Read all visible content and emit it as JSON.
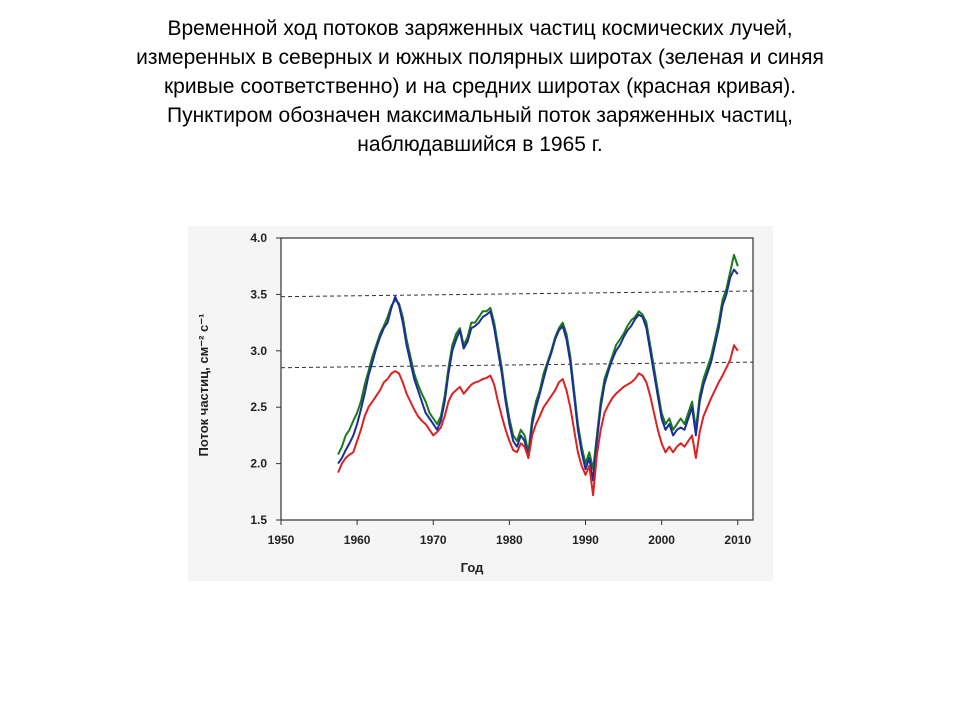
{
  "caption": {
    "lines": [
      "Временной ход потоков заряженных частиц космических лучей,",
      "измеренных в северных и южных полярных широтах (зеленая и синяя",
      "кривые соответственно) и на средних широтах (красная кривая).",
      "Пунктиром обозначен максимальный поток заряженных частиц,",
      "наблюдавшийся в 1965 г."
    ]
  },
  "chart_data": {
    "type": "line",
    "xlabel": "Год",
    "ylabel": "Поток частиц, см⁻² с⁻¹",
    "xlim": [
      1950,
      2012
    ],
    "ylim": [
      1.5,
      4.0
    ],
    "xticks": [
      "1950",
      "1960",
      "1970",
      "1980",
      "1990",
      "2000",
      "2010"
    ],
    "yticks": [
      "1.5",
      "2.0",
      "2.5",
      "3.0",
      "3.5",
      "4.0"
    ],
    "grid": false,
    "reference_lines": [
      {
        "style": "dashed",
        "color": "#333333",
        "points": [
          [
            1950,
            3.48
          ],
          [
            2012,
            3.53
          ]
        ]
      },
      {
        "style": "dashed",
        "color": "#333333",
        "points": [
          [
            1950,
            2.85
          ],
          [
            2012,
            2.9
          ]
        ]
      }
    ],
    "series": [
      {
        "color": "#1a7a1a",
        "x": [
          1957.5,
          1958.0,
          1958.5,
          1959.0,
          1959.5,
          1960.0,
          1960.5,
          1961.0,
          1961.5,
          1962.0,
          1962.5,
          1963.0,
          1963.5,
          1964.0,
          1964.5,
          1965.0,
          1965.5,
          1966.0,
          1966.5,
          1967.0,
          1967.5,
          1968.0,
          1968.5,
          1969.0,
          1969.5,
          1970.0,
          1970.5,
          1971.0,
          1971.5,
          1972.0,
          1972.5,
          1973.0,
          1973.5,
          1974.0,
          1974.5,
          1975.0,
          1975.5,
          1976.0,
          1976.5,
          1977.0,
          1977.5,
          1978.0,
          1978.5,
          1979.0,
          1979.5,
          1980.0,
          1980.5,
          1981.0,
          1981.5,
          1982.0,
          1982.5,
          1983.0,
          1983.5,
          1984.0,
          1984.5,
          1985.0,
          1985.5,
          1986.0,
          1986.5,
          1987.0,
          1987.5,
          1988.0,
          1988.5,
          1989.0,
          1989.5,
          1990.0,
          1990.5,
          1991.0,
          1991.5,
          1992.0,
          1992.5,
          1993.0,
          1993.5,
          1994.0,
          1994.5,
          1995.0,
          1995.5,
          1996.0,
          1996.5,
          1997.0,
          1997.5,
          1998.0,
          1998.5,
          1999.0,
          1999.5,
          2000.0,
          2000.5,
          2001.0,
          2001.5,
          2002.0,
          2002.5,
          2003.0,
          2003.5,
          2004.0,
          2004.5,
          2005.0,
          2005.5,
          2006.0,
          2006.5,
          2007.0,
          2007.5,
          2008.0,
          2008.5,
          2009.0,
          2009.5,
          2010.0
        ],
        "y": [
          2.08,
          2.15,
          2.25,
          2.3,
          2.38,
          2.45,
          2.55,
          2.7,
          2.82,
          2.95,
          3.05,
          3.15,
          3.22,
          3.3,
          3.4,
          3.45,
          3.42,
          3.3,
          3.1,
          2.95,
          2.8,
          2.7,
          2.62,
          2.55,
          2.45,
          2.4,
          2.35,
          2.42,
          2.6,
          2.85,
          3.05,
          3.15,
          3.2,
          3.05,
          3.12,
          3.25,
          3.25,
          3.3,
          3.35,
          3.35,
          3.38,
          3.25,
          3.05,
          2.85,
          2.6,
          2.4,
          2.25,
          2.2,
          2.3,
          2.25,
          2.1,
          2.4,
          2.55,
          2.65,
          2.8,
          2.9,
          3.0,
          3.12,
          3.2,
          3.25,
          3.15,
          2.95,
          2.65,
          2.35,
          2.15,
          2.0,
          2.1,
          1.95,
          2.25,
          2.55,
          2.75,
          2.85,
          2.95,
          3.05,
          3.1,
          3.15,
          3.22,
          3.27,
          3.3,
          3.35,
          3.32,
          3.25,
          3.05,
          2.85,
          2.65,
          2.45,
          2.35,
          2.4,
          2.3,
          2.35,
          2.4,
          2.35,
          2.45,
          2.55,
          2.3,
          2.6,
          2.75,
          2.85,
          2.95,
          3.1,
          3.25,
          3.45,
          3.55,
          3.7,
          3.85,
          3.75
        ]
      },
      {
        "color": "#1a2e99",
        "x": [
          1957.5,
          1958.0,
          1958.5,
          1959.0,
          1959.5,
          1960.0,
          1960.5,
          1961.0,
          1961.5,
          1962.0,
          1962.5,
          1963.0,
          1963.5,
          1964.0,
          1964.5,
          1965.0,
          1965.5,
          1966.0,
          1966.5,
          1967.0,
          1967.5,
          1968.0,
          1968.5,
          1969.0,
          1969.5,
          1970.0,
          1970.5,
          1971.0,
          1971.5,
          1972.0,
          1972.5,
          1973.0,
          1973.5,
          1974.0,
          1974.5,
          1975.0,
          1975.5,
          1976.0,
          1976.5,
          1977.0,
          1977.5,
          1978.0,
          1978.5,
          1979.0,
          1979.5,
          1980.0,
          1980.5,
          1981.0,
          1981.5,
          1982.0,
          1982.5,
          1983.0,
          1983.5,
          1984.0,
          1984.5,
          1985.0,
          1985.5,
          1986.0,
          1986.5,
          1987.0,
          1987.5,
          1988.0,
          1988.5,
          1989.0,
          1989.5,
          1990.0,
          1990.5,
          1991.0,
          1991.5,
          1992.0,
          1992.5,
          1993.0,
          1993.5,
          1994.0,
          1994.5,
          1995.0,
          1995.5,
          1996.0,
          1996.5,
          1997.0,
          1997.5,
          1998.0,
          1998.5,
          1999.0,
          1999.5,
          2000.0,
          2000.5,
          2001.0,
          2001.5,
          2002.0,
          2002.5,
          2003.0,
          2003.5,
          2004.0,
          2004.5,
          2005.0,
          2005.5,
          2006.0,
          2006.5,
          2007.0,
          2007.5,
          2008.0,
          2008.5,
          2009.0,
          2009.5,
          2010.0
        ],
        "y": [
          2.0,
          2.05,
          2.12,
          2.18,
          2.25,
          2.35,
          2.48,
          2.62,
          2.78,
          2.9,
          3.02,
          3.12,
          3.2,
          3.25,
          3.38,
          3.48,
          3.4,
          3.25,
          3.05,
          2.9,
          2.75,
          2.65,
          2.55,
          2.45,
          2.4,
          2.35,
          2.3,
          2.38,
          2.55,
          2.8,
          3.0,
          3.1,
          3.18,
          3.02,
          3.08,
          3.2,
          3.22,
          3.25,
          3.3,
          3.32,
          3.35,
          3.2,
          3.0,
          2.8,
          2.55,
          2.35,
          2.2,
          2.15,
          2.25,
          2.2,
          2.05,
          2.35,
          2.5,
          2.62,
          2.75,
          2.88,
          2.98,
          3.1,
          3.18,
          3.22,
          3.1,
          2.9,
          2.6,
          2.3,
          2.1,
          1.95,
          2.05,
          1.85,
          2.2,
          2.5,
          2.7,
          2.82,
          2.92,
          3.0,
          3.05,
          3.12,
          3.18,
          3.22,
          3.28,
          3.32,
          3.3,
          3.2,
          3.0,
          2.8,
          2.6,
          2.4,
          2.3,
          2.35,
          2.25,
          2.3,
          2.32,
          2.3,
          2.4,
          2.5,
          2.25,
          2.55,
          2.7,
          2.8,
          2.9,
          3.05,
          3.2,
          3.4,
          3.5,
          3.65,
          3.72,
          3.68
        ]
      },
      {
        "color": "#dd2222",
        "x": [
          1957.5,
          1958.0,
          1958.5,
          1959.0,
          1959.5,
          1960.0,
          1960.5,
          1961.0,
          1961.5,
          1962.0,
          1962.5,
          1963.0,
          1963.5,
          1964.0,
          1964.5,
          1965.0,
          1965.5,
          1966.0,
          1966.5,
          1967.0,
          1967.5,
          1968.0,
          1968.5,
          1969.0,
          1969.5,
          1970.0,
          1970.5,
          1971.0,
          1971.5,
          1972.0,
          1972.5,
          1973.0,
          1973.5,
          1974.0,
          1974.5,
          1975.0,
          1975.5,
          1976.0,
          1976.5,
          1977.0,
          1977.5,
          1978.0,
          1978.5,
          1979.0,
          1979.5,
          1980.0,
          1980.5,
          1981.0,
          1981.5,
          1982.0,
          1982.5,
          1983.0,
          1983.5,
          1984.0,
          1984.5,
          1985.0,
          1985.5,
          1986.0,
          1986.5,
          1987.0,
          1987.5,
          1988.0,
          1988.5,
          1989.0,
          1989.5,
          1990.0,
          1990.5,
          1991.0,
          1991.5,
          1992.0,
          1992.5,
          1993.0,
          1993.5,
          1994.0,
          1994.5,
          1995.0,
          1995.5,
          1996.0,
          1996.5,
          1997.0,
          1997.5,
          1998.0,
          1998.5,
          1999.0,
          1999.5,
          2000.0,
          2000.5,
          2001.0,
          2001.5,
          2002.0,
          2002.5,
          2003.0,
          2003.5,
          2004.0,
          2004.5,
          2005.0,
          2005.5,
          2006.0,
          2006.5,
          2007.0,
          2007.5,
          2008.0,
          2008.5,
          2009.0,
          2009.5,
          2010.0
        ],
        "y": [
          1.92,
          2.0,
          2.05,
          2.08,
          2.1,
          2.2,
          2.3,
          2.42,
          2.5,
          2.55,
          2.6,
          2.65,
          2.72,
          2.75,
          2.8,
          2.82,
          2.8,
          2.72,
          2.62,
          2.55,
          2.48,
          2.42,
          2.38,
          2.35,
          2.3,
          2.25,
          2.28,
          2.32,
          2.42,
          2.55,
          2.62,
          2.65,
          2.68,
          2.62,
          2.66,
          2.7,
          2.72,
          2.73,
          2.75,
          2.76,
          2.78,
          2.7,
          2.55,
          2.42,
          2.3,
          2.2,
          2.12,
          2.1,
          2.18,
          2.15,
          2.05,
          2.25,
          2.35,
          2.42,
          2.5,
          2.55,
          2.6,
          2.65,
          2.72,
          2.75,
          2.65,
          2.5,
          2.3,
          2.1,
          1.98,
          1.9,
          1.98,
          1.72,
          2.08,
          2.3,
          2.45,
          2.52,
          2.58,
          2.62,
          2.65,
          2.68,
          2.7,
          2.72,
          2.75,
          2.8,
          2.78,
          2.72,
          2.6,
          2.45,
          2.3,
          2.18,
          2.1,
          2.15,
          2.1,
          2.15,
          2.18,
          2.15,
          2.2,
          2.25,
          2.05,
          2.28,
          2.42,
          2.5,
          2.58,
          2.65,
          2.72,
          2.78,
          2.85,
          2.92,
          3.05,
          3.0
        ]
      }
    ]
  }
}
